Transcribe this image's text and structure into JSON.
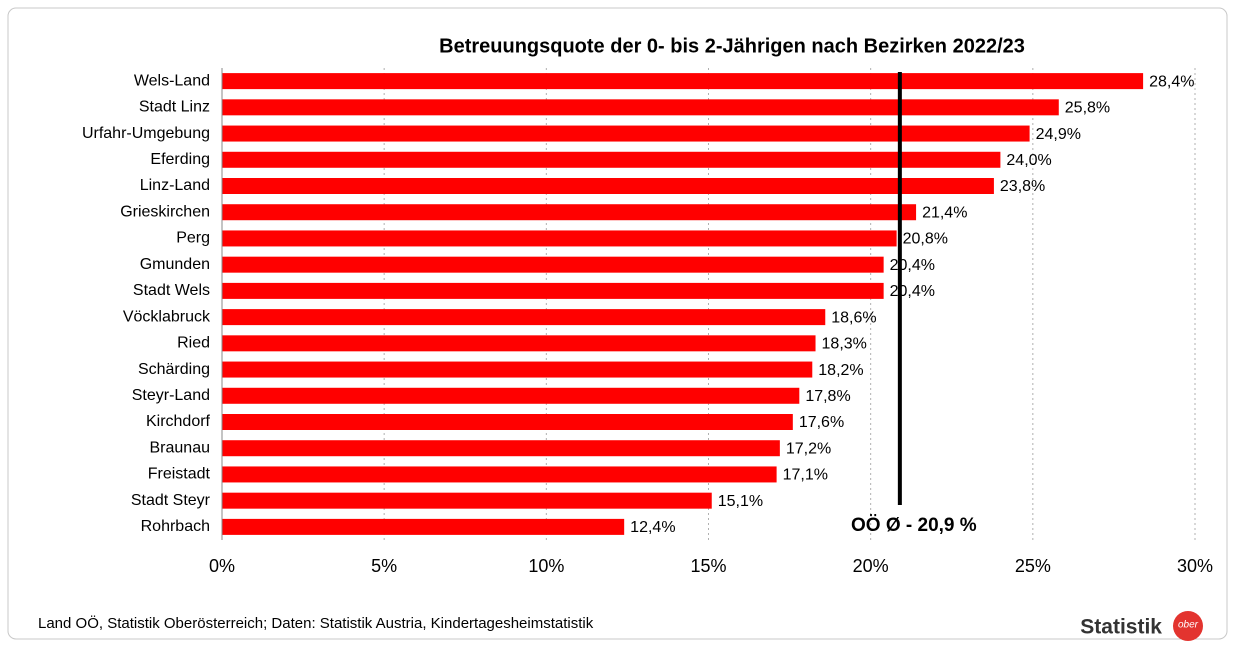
{
  "chart_data": {
    "type": "hbar",
    "title": "Betreuungsquote der 0- bis 2-Jährigen nach Bezirken 2022/23",
    "categories": [
      "Wels-Land",
      "Stadt Linz",
      "Urfahr-Umgebung",
      "Eferding",
      "Linz-Land",
      "Grieskirchen",
      "Perg",
      "Gmunden",
      "Stadt Wels",
      "Vöcklabruck",
      "Ried",
      "Schärding",
      "Steyr-Land",
      "Kirchdorf",
      "Braunau",
      "Freistadt",
      "Stadt Steyr",
      "Rohrbach"
    ],
    "values": [
      28.4,
      25.8,
      24.9,
      24.0,
      23.8,
      21.4,
      20.8,
      20.4,
      20.4,
      18.6,
      18.3,
      18.2,
      17.8,
      17.6,
      17.2,
      17.1,
      15.1,
      12.4
    ],
    "value_labels": [
      "28,4%",
      "25,8%",
      "24,9%",
      "24,0%",
      "23,8%",
      "21,4%",
      "20,8%",
      "20,4%",
      "20,4%",
      "18,6%",
      "18,3%",
      "18,2%",
      "17,8%",
      "17,6%",
      "17,2%",
      "17,1%",
      "15,1%",
      "12,4%"
    ],
    "color": "#ff0000",
    "xlim": [
      0,
      30
    ],
    "xticks": [
      {
        "value": 0,
        "label": "0%"
      },
      {
        "value": 5,
        "label": "5%"
      },
      {
        "value": 10,
        "label": "10%"
      },
      {
        "value": 15,
        "label": "15%"
      },
      {
        "value": 20,
        "label": "20%"
      },
      {
        "value": 25,
        "label": "25%"
      },
      {
        "value": 30,
        "label": "30%"
      }
    ],
    "grid": true,
    "reference_line": {
      "value": 20.9,
      "label": "OÖ Ø - 20,9 %"
    },
    "source": "Land OÖ, Statistik Oberösterreich; Daten: Statistik Austria, Kindertagesheimstatistik",
    "logo_text": "Statistik",
    "logo_badge": "ober"
  }
}
